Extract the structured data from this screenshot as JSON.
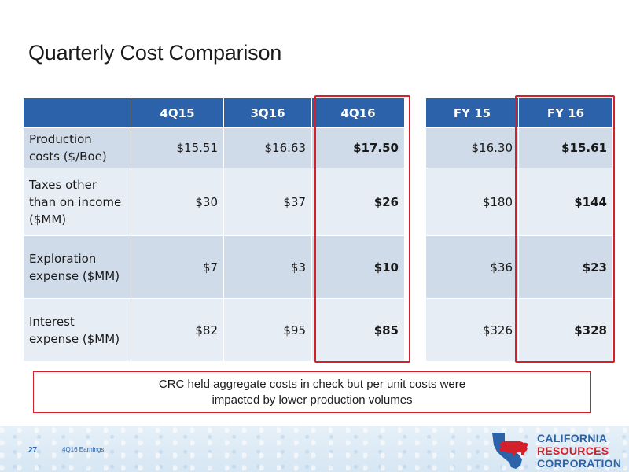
{
  "slide": {
    "title": "Quarterly Cost Comparison",
    "page_number": "27",
    "footer_label": "4Q16 Earnings"
  },
  "quarterly_table": {
    "headers": [
      "",
      "4Q15",
      "3Q16",
      "4Q16"
    ],
    "rows": [
      {
        "label": "Production costs ($/Boe)",
        "values": [
          "$15.51",
          "$16.63",
          "$17.50"
        ]
      },
      {
        "label": "Taxes other than on income ($MM)",
        "values": [
          "$30",
          "$37",
          "$26"
        ]
      },
      {
        "label": "Exploration expense ($MM)",
        "values": [
          "$7",
          "$3",
          "$10"
        ]
      },
      {
        "label": "Interest expense ($MM)",
        "values": [
          "$82",
          "$95",
          "$85"
        ]
      }
    ],
    "highlighted_column": "4Q16"
  },
  "annual_table": {
    "headers": [
      "FY 15",
      "FY 16"
    ],
    "rows": [
      {
        "values": [
          "$16.30",
          "$15.61"
        ]
      },
      {
        "values": [
          "$180",
          "$144"
        ]
      },
      {
        "values": [
          "$36",
          "$23"
        ]
      },
      {
        "values": [
          "$326",
          "$328"
        ]
      }
    ],
    "highlighted_column": "FY 16"
  },
  "note": {
    "line1": "CRC held aggregate costs in check but per unit costs were",
    "line2": "impacted by lower production volumes"
  },
  "logo": {
    "line1": "CALIFORNIA",
    "line2": "RESOURCES",
    "line3": "CORPORATION",
    "icon": "california-bear-logo-icon"
  },
  "colors": {
    "header_blue": "#2b62a9",
    "row_dark": "#cfdbe9",
    "row_light": "#e7edf4",
    "highlight_red": "#d4202a"
  }
}
